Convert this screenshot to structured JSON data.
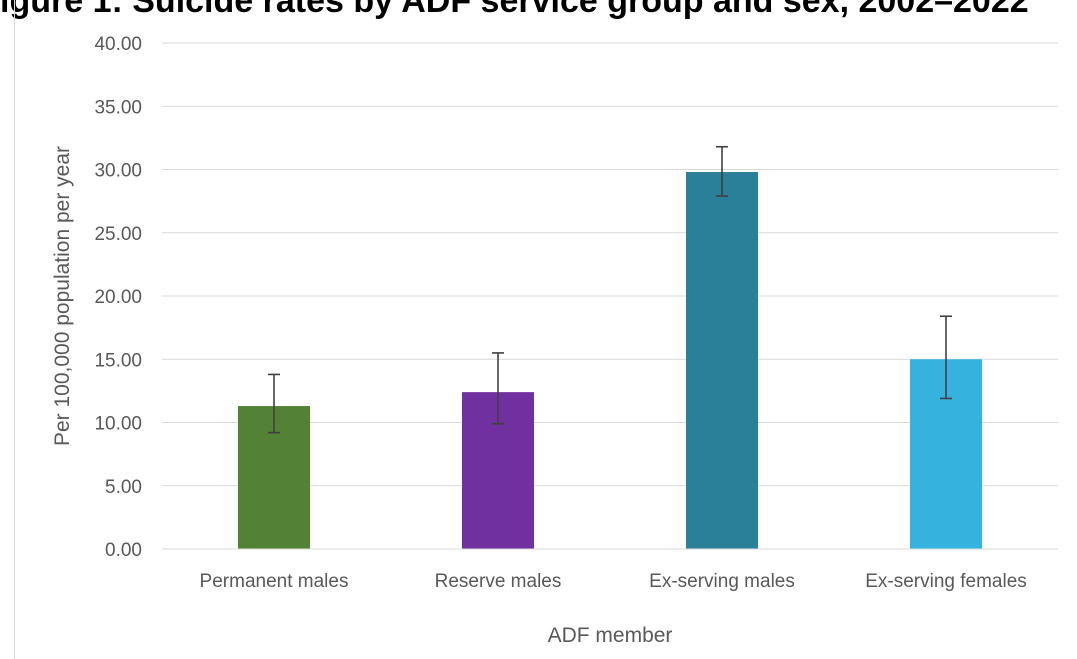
{
  "chart_data": {
    "type": "bar",
    "title": "igure 1: Suicide rates by ADF service group and sex, 2002–2022",
    "xlabel": "ADF member",
    "ylabel": "Per 100,000 population per year",
    "ylim": [
      0,
      40
    ],
    "y_ticks": [
      "0.00",
      "5.00",
      "10.00",
      "15.00",
      "20.00",
      "25.00",
      "30.00",
      "35.00",
      "40.00"
    ],
    "y_tick_values": [
      0,
      5,
      10,
      15,
      20,
      25,
      30,
      35,
      40
    ],
    "categories": [
      "Permanent males",
      "Reserve males",
      "Ex-serving males",
      "Ex-serving females"
    ],
    "values": [
      11.3,
      12.4,
      29.8,
      15.0
    ],
    "error_low": [
      9.2,
      9.9,
      27.9,
      11.9
    ],
    "error_high": [
      13.8,
      15.5,
      31.8,
      18.4
    ],
    "colors": [
      "#538135",
      "#7030A0",
      "#2A7F99",
      "#35B3DE"
    ],
    "grid": true,
    "legend": "none"
  }
}
